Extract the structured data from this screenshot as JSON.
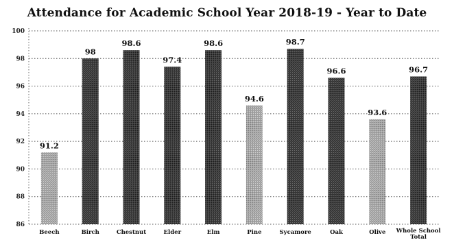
{
  "chart_data": {
    "type": "bar",
    "title": "Attendance for Academic School Year 2018-19 - Year to Date",
    "xlabel": "",
    "ylabel": "",
    "categories": [
      "Beech",
      "Birch",
      "Chestnut",
      "Elder",
      "Elm",
      "Pine",
      "Sycamore",
      "Oak",
      "Olive",
      "Whole School Total"
    ],
    "values": [
      91.2,
      98,
      98.6,
      97.4,
      98.6,
      94.6,
      98.7,
      96.6,
      93.6,
      96.7
    ],
    "value_labels": [
      "91.2",
      "98",
      "98.6",
      "97.4",
      "98.6",
      "94.6",
      "98.7",
      "96.6",
      "93.6",
      "96.7"
    ],
    "bar_shades": [
      "light",
      "dark",
      "dark",
      "dark",
      "dark",
      "light",
      "dark",
      "dark",
      "light",
      "dark"
    ],
    "ylim": [
      86,
      100
    ],
    "yticks": [
      "86",
      "88",
      "90",
      "92",
      "94",
      "96",
      "98",
      "100"
    ],
    "grid": true,
    "legend": "none",
    "colors": {
      "dark": "#3a3a3a",
      "light": "#a3a3a3",
      "grid": "#555555"
    }
  }
}
